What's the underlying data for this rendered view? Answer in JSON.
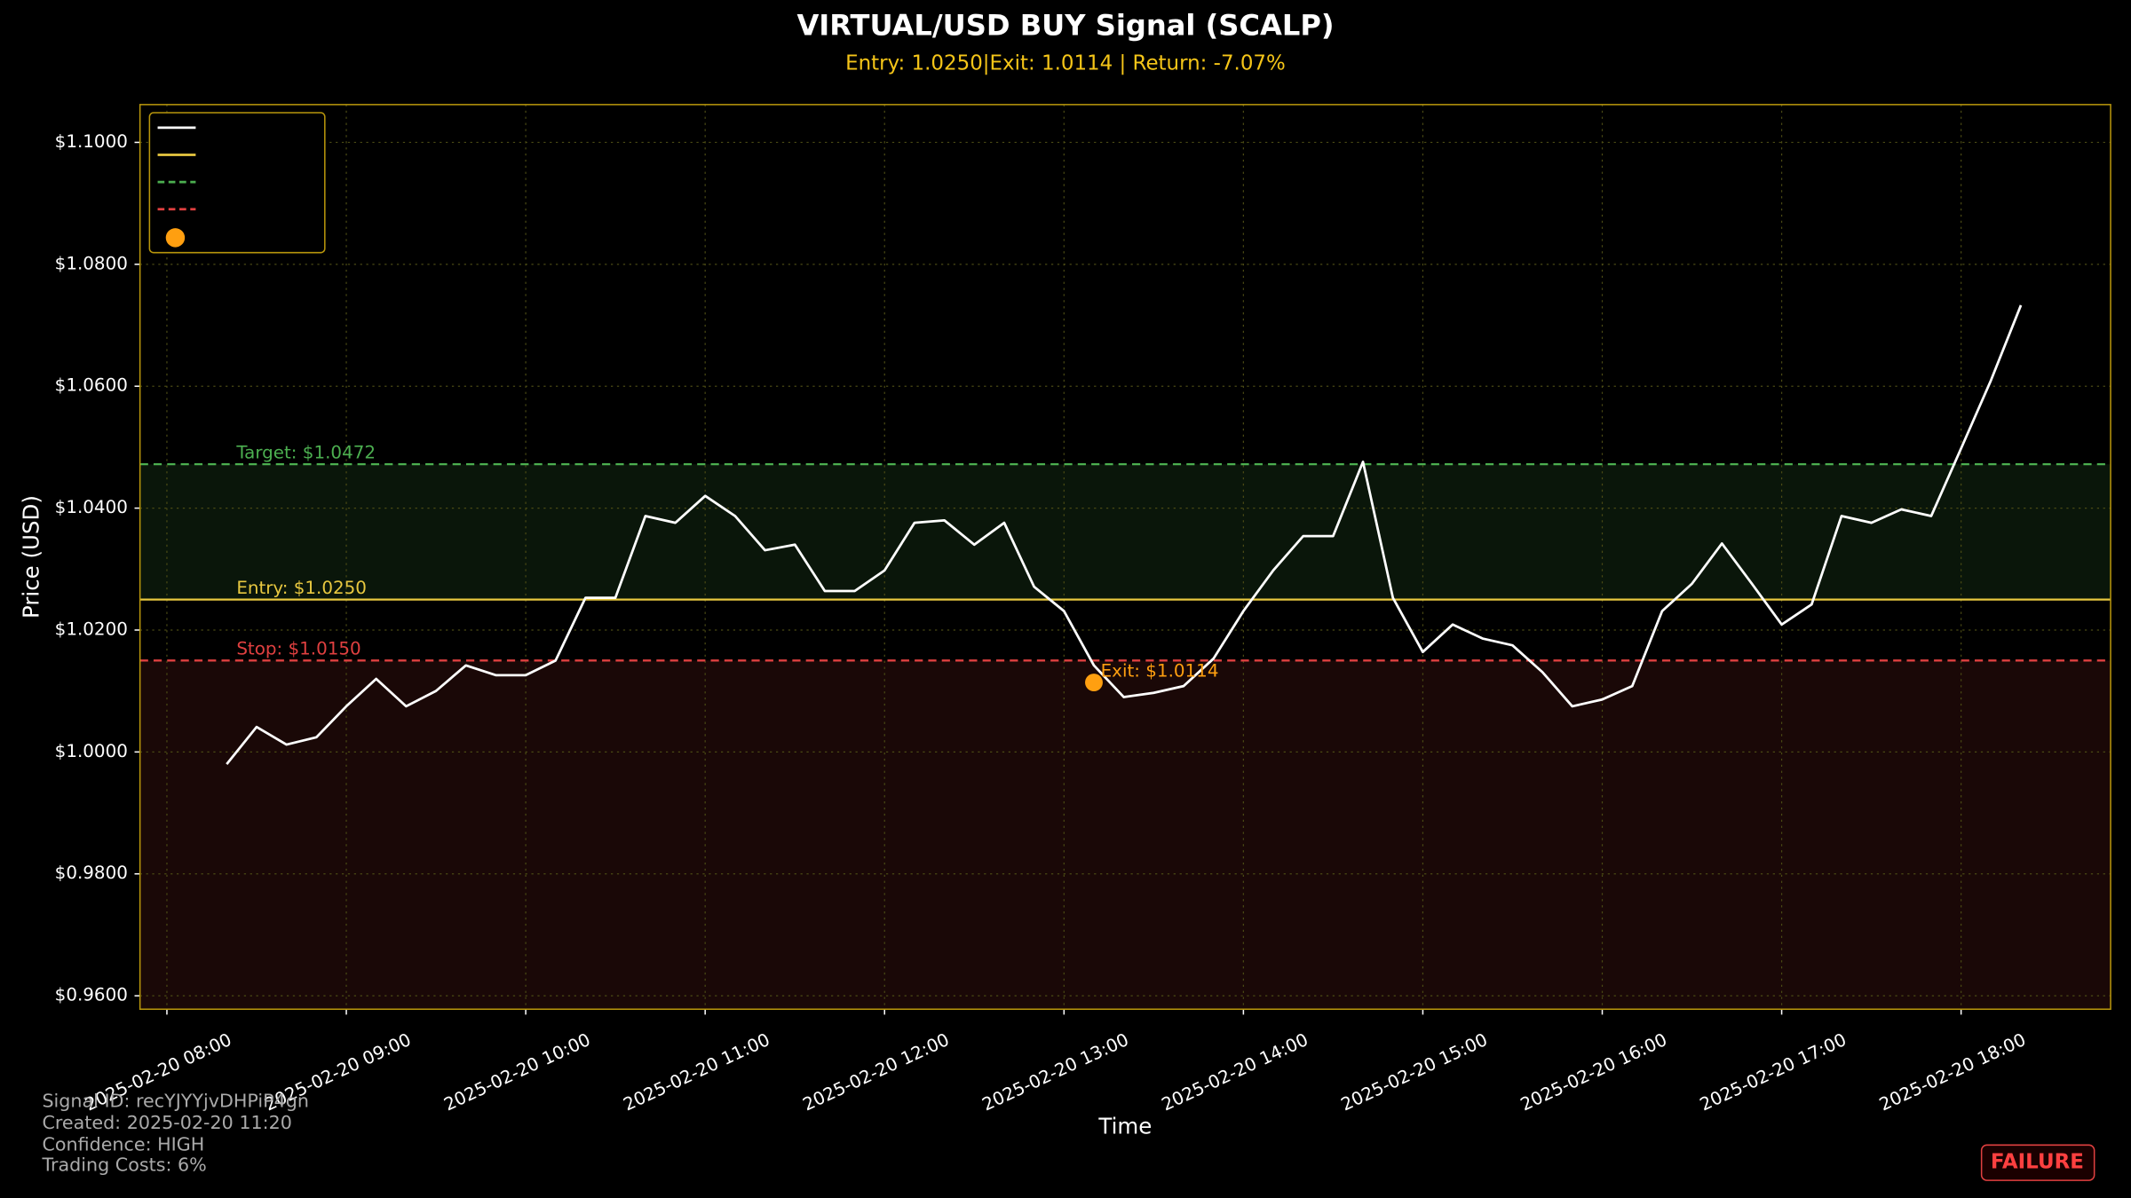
{
  "chart_data": {
    "type": "line",
    "title": "VIRTUAL/USD BUY Signal (SCALP)",
    "subtitle": "Entry: 1.0250|Exit: 1.0114 | Return: -7.07%",
    "x_label": "Time",
    "y_label": "Price (USD)",
    "x": [
      "2025-02-20 08:20",
      "2025-02-20 08:30",
      "2025-02-20 08:40",
      "2025-02-20 08:50",
      "2025-02-20 09:00",
      "2025-02-20 09:10",
      "2025-02-20 09:20",
      "2025-02-20 09:30",
      "2025-02-20 09:40",
      "2025-02-20 09:50",
      "2025-02-20 10:00",
      "2025-02-20 10:10",
      "2025-02-20 10:20",
      "2025-02-20 10:30",
      "2025-02-20 10:40",
      "2025-02-20 10:50",
      "2025-02-20 11:00",
      "2025-02-20 11:10",
      "2025-02-20 11:20",
      "2025-02-20 11:30",
      "2025-02-20 11:40",
      "2025-02-20 11:50",
      "2025-02-20 12:00",
      "2025-02-20 12:10",
      "2025-02-20 12:20",
      "2025-02-20 12:30",
      "2025-02-20 12:40",
      "2025-02-20 12:50",
      "2025-02-20 13:00",
      "2025-02-20 13:10",
      "2025-02-20 13:20",
      "2025-02-20 13:30",
      "2025-02-20 13:40",
      "2025-02-20 13:50",
      "2025-02-20 14:00",
      "2025-02-20 14:10",
      "2025-02-20 14:20",
      "2025-02-20 14:30",
      "2025-02-20 14:40",
      "2025-02-20 14:50",
      "2025-02-20 15:00",
      "2025-02-20 15:10",
      "2025-02-20 15:20",
      "2025-02-20 15:30",
      "2025-02-20 15:40",
      "2025-02-20 15:50",
      "2025-02-20 16:00",
      "2025-02-20 16:10",
      "2025-02-20 16:20",
      "2025-02-20 16:30",
      "2025-02-20 16:40",
      "2025-02-20 16:50",
      "2025-02-20 17:00",
      "2025-02-20 17:10",
      "2025-02-20 17:20",
      "2025-02-20 17:30",
      "2025-02-20 17:40",
      "2025-02-20 17:50",
      "2025-02-20 18:00",
      "2025-02-20 18:10",
      "2025-02-20 18:20"
    ],
    "series": [
      {
        "color": "#ffffff",
        "values": [
          0.998,
          1.0041,
          1.0012,
          1.0024,
          1.0075,
          1.012,
          1.0075,
          1.01,
          1.0142,
          1.0126,
          1.0126,
          1.015,
          1.0253,
          1.0253,
          1.0387,
          1.0376,
          1.042,
          1.0387,
          1.0331,
          1.034,
          1.0264,
          1.0264,
          1.0298,
          1.0376,
          1.038,
          1.034,
          1.0376,
          1.0271,
          1.0231,
          1.0142,
          1.009,
          1.0097,
          1.0108,
          1.0153,
          1.0231,
          1.0298,
          1.0354,
          1.0354,
          1.0476,
          1.0253,
          1.0164,
          1.0209,
          1.0186,
          1.0175,
          1.0131,
          1.0075,
          1.0086,
          1.0108,
          1.0231,
          1.0276,
          1.0342,
          1.0276,
          1.0209,
          1.0242,
          1.0387,
          1.0376,
          1.0398,
          1.0387,
          1.0498,
          1.061,
          1.0733
        ]
      }
    ],
    "levels": [
      {
        "value": 1.0472,
        "label": "Target: $1.0472",
        "color": "#4caf50",
        "dash": true
      },
      {
        "value": 1.025,
        "label": "Entry: $1.0250",
        "color": "#e8c840",
        "dash": false
      },
      {
        "value": 1.015,
        "label": "Stop: $1.0150",
        "color": "#e04040",
        "dash": true
      }
    ],
    "exit": {
      "x": "2025-02-20 13:10",
      "value": 1.0114,
      "label": "Exit: $1.0114",
      "color": "#ff9f10"
    },
    "xlim": [
      "2025-02-20 07:51",
      "2025-02-20 18:50"
    ],
    "xticks": [
      "2025-02-20 08:00",
      "2025-02-20 09:00",
      "2025-02-20 10:00",
      "2025-02-20 11:00",
      "2025-02-20 12:00",
      "2025-02-20 13:00",
      "2025-02-20 14:00",
      "2025-02-20 15:00",
      "2025-02-20 16:00",
      "2025-02-20 17:00",
      "2025-02-20 18:00"
    ],
    "ylim": [
      0.9578,
      1.1062
    ],
    "yticks": [
      {
        "value": 0.96,
        "label": "$0.9600"
      },
      {
        "value": 0.98,
        "label": "$0.9800"
      },
      {
        "value": 1.0,
        "label": "$1.0000"
      },
      {
        "value": 1.02,
        "label": "$1.0200"
      },
      {
        "value": 1.04,
        "label": "$1.0400"
      },
      {
        "value": 1.06,
        "label": "$1.0600"
      },
      {
        "value": 1.08,
        "label": "$1.0800"
      },
      {
        "value": 1.1,
        "label": "$1.1000"
      }
    ],
    "grid": true,
    "info": [
      "Signal ID: recYJYYjvDHPiP4gn",
      "Created: 2025-02-20 11:20",
      "Confidence: HIGH",
      "Trading Costs: 6%"
    ],
    "status": "FAILURE"
  }
}
